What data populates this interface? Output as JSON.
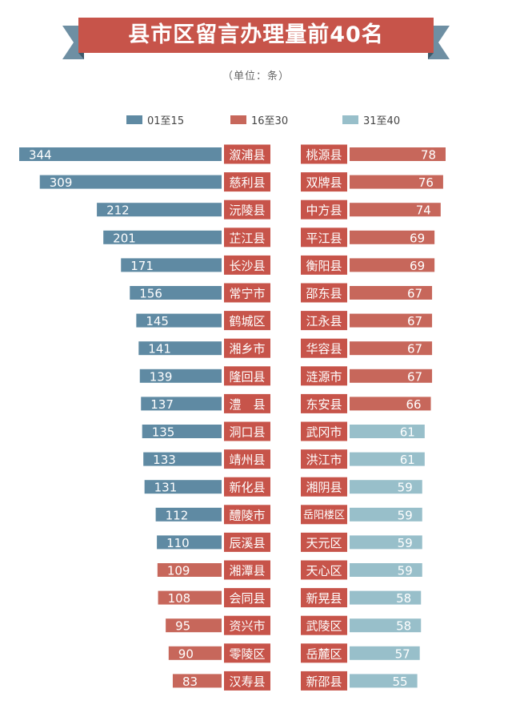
{
  "title": "县市区留言办理量前40名",
  "subtitle": "（单位：条）",
  "legend": [
    {
      "label": "01至15",
      "color": "#5f8aa3"
    },
    {
      "label": "16至30",
      "color": "#c7675b"
    },
    {
      "label": "31至40",
      "color": "#98bfca"
    }
  ],
  "colors": {
    "banner": "#c7544a",
    "banner_dark": "#8a2f29",
    "ribbon_tail": "#6e8fa3",
    "label_box": "#c7544a",
    "bar_text": "#ffffff"
  },
  "chart_data": {
    "type": "bar",
    "title": "县市区留言办理量前40名",
    "unit": "条",
    "xlim": [
      0,
      344
    ],
    "groups": [
      {
        "name": "01至15",
        "color": "#5f8aa3"
      },
      {
        "name": "16至30",
        "color": "#c7675b"
      },
      {
        "name": "31至40",
        "color": "#98bfca"
      }
    ],
    "left": [
      {
        "name": "溆浦县",
        "value": 344,
        "group": 0
      },
      {
        "name": "慈利县",
        "value": 309,
        "group": 0
      },
      {
        "name": "沅陵县",
        "value": 212,
        "group": 0
      },
      {
        "name": "芷江县",
        "value": 201,
        "group": 0
      },
      {
        "name": "长沙县",
        "value": 171,
        "group": 0
      },
      {
        "name": "常宁市",
        "value": 156,
        "group": 0
      },
      {
        "name": "鹤城区",
        "value": 145,
        "group": 0
      },
      {
        "name": "湘乡市",
        "value": 141,
        "group": 0
      },
      {
        "name": "隆回县",
        "value": 139,
        "group": 0
      },
      {
        "name": "澧　县",
        "value": 137,
        "group": 0
      },
      {
        "name": "洞口县",
        "value": 135,
        "group": 0
      },
      {
        "name": "靖州县",
        "value": 133,
        "group": 0
      },
      {
        "name": "新化县",
        "value": 131,
        "group": 0
      },
      {
        "name": "醴陵市",
        "value": 112,
        "group": 0
      },
      {
        "name": "辰溪县",
        "value": 110,
        "group": 0
      },
      {
        "name": "湘潭县",
        "value": 109,
        "group": 1
      },
      {
        "name": "会同县",
        "value": 108,
        "group": 1
      },
      {
        "name": "资兴市",
        "value": 95,
        "group": 1
      },
      {
        "name": "零陵区",
        "value": 90,
        "group": 1
      },
      {
        "name": "汉寿县",
        "value": 83,
        "group": 1
      }
    ],
    "right": [
      {
        "name": "桃源县",
        "value": 78,
        "group": 1
      },
      {
        "name": "双牌县",
        "value": 76,
        "group": 1
      },
      {
        "name": "中方县",
        "value": 74,
        "group": 1
      },
      {
        "name": "平江县",
        "value": 69,
        "group": 1
      },
      {
        "name": "衡阳县",
        "value": 69,
        "group": 1
      },
      {
        "name": "邵东县",
        "value": 67,
        "group": 1
      },
      {
        "name": "江永县",
        "value": 67,
        "group": 1
      },
      {
        "name": "华容县",
        "value": 67,
        "group": 1
      },
      {
        "name": "涟源市",
        "value": 67,
        "group": 1
      },
      {
        "name": "东安县",
        "value": 66,
        "group": 1
      },
      {
        "name": "武冈市",
        "value": 61,
        "group": 2
      },
      {
        "name": "洪江市",
        "value": 61,
        "group": 2
      },
      {
        "name": "湘阴县",
        "value": 59,
        "group": 2
      },
      {
        "name": "岳阳楼区",
        "value": 59,
        "group": 2
      },
      {
        "name": "天元区",
        "value": 59,
        "group": 2
      },
      {
        "name": "天心区",
        "value": 59,
        "group": 2
      },
      {
        "name": "新晃县",
        "value": 58,
        "group": 2
      },
      {
        "name": "武陵区",
        "value": 58,
        "group": 2
      },
      {
        "name": "岳麓区",
        "value": 57,
        "group": 2
      },
      {
        "name": "新邵县",
        "value": 55,
        "group": 2
      }
    ]
  }
}
